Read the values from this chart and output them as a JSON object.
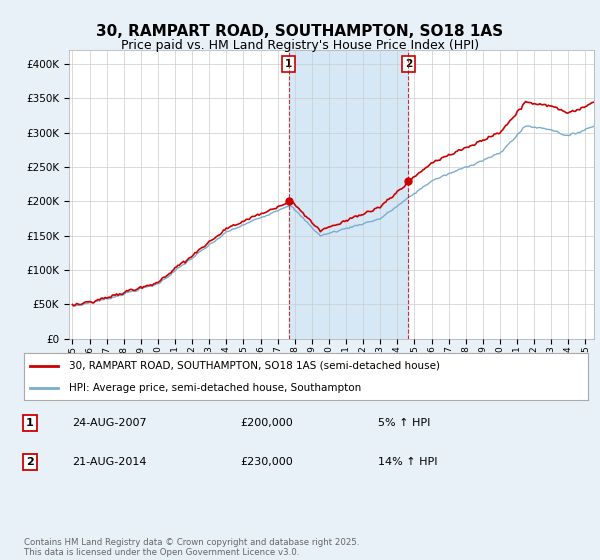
{
  "title": "30, RAMPART ROAD, SOUTHAMPTON, SO18 1AS",
  "subtitle": "Price paid vs. HM Land Registry's House Price Index (HPI)",
  "legend_line1": "30, RAMPART ROAD, SOUTHAMPTON, SO18 1AS (semi-detached house)",
  "legend_line2": "HPI: Average price, semi-detached house, Southampton",
  "marker1_date": "24-AUG-2007",
  "marker1_price": "£200,000",
  "marker1_hpi": "5% ↑ HPI",
  "marker1_year": 2007.64,
  "marker1_value": 200000,
  "marker2_date": "21-AUG-2014",
  "marker2_price": "£230,000",
  "marker2_hpi": "14% ↑ HPI",
  "marker2_year": 2014.64,
  "marker2_value": 230000,
  "ylim": [
    0,
    420000
  ],
  "xlim": [
    1994.8,
    2025.5
  ],
  "line_color_red": "#cc0000",
  "line_color_blue": "#7aadcf",
  "shade_color": "#d6e8f5",
  "background_color": "#e8f0f8",
  "plot_bg_color": "#ffffff",
  "grid_color": "#cccccc",
  "title_fontsize": 11,
  "subtitle_fontsize": 9,
  "footer": "Contains HM Land Registry data © Crown copyright and database right 2025.\nThis data is licensed under the Open Government Licence v3.0.",
  "yticks": [
    0,
    50000,
    100000,
    150000,
    200000,
    250000,
    300000,
    350000,
    400000
  ],
  "ytick_labels": [
    "£0",
    "£50K",
    "£100K",
    "£150K",
    "£200K",
    "£250K",
    "£300K",
    "£350K",
    "£400K"
  ],
  "xticks": [
    1995,
    1996,
    1997,
    1998,
    1999,
    2000,
    2001,
    2002,
    2003,
    2004,
    2005,
    2006,
    2007,
    2008,
    2009,
    2010,
    2011,
    2012,
    2013,
    2014,
    2015,
    2016,
    2017,
    2018,
    2019,
    2020,
    2021,
    2022,
    2023,
    2024,
    2025
  ]
}
